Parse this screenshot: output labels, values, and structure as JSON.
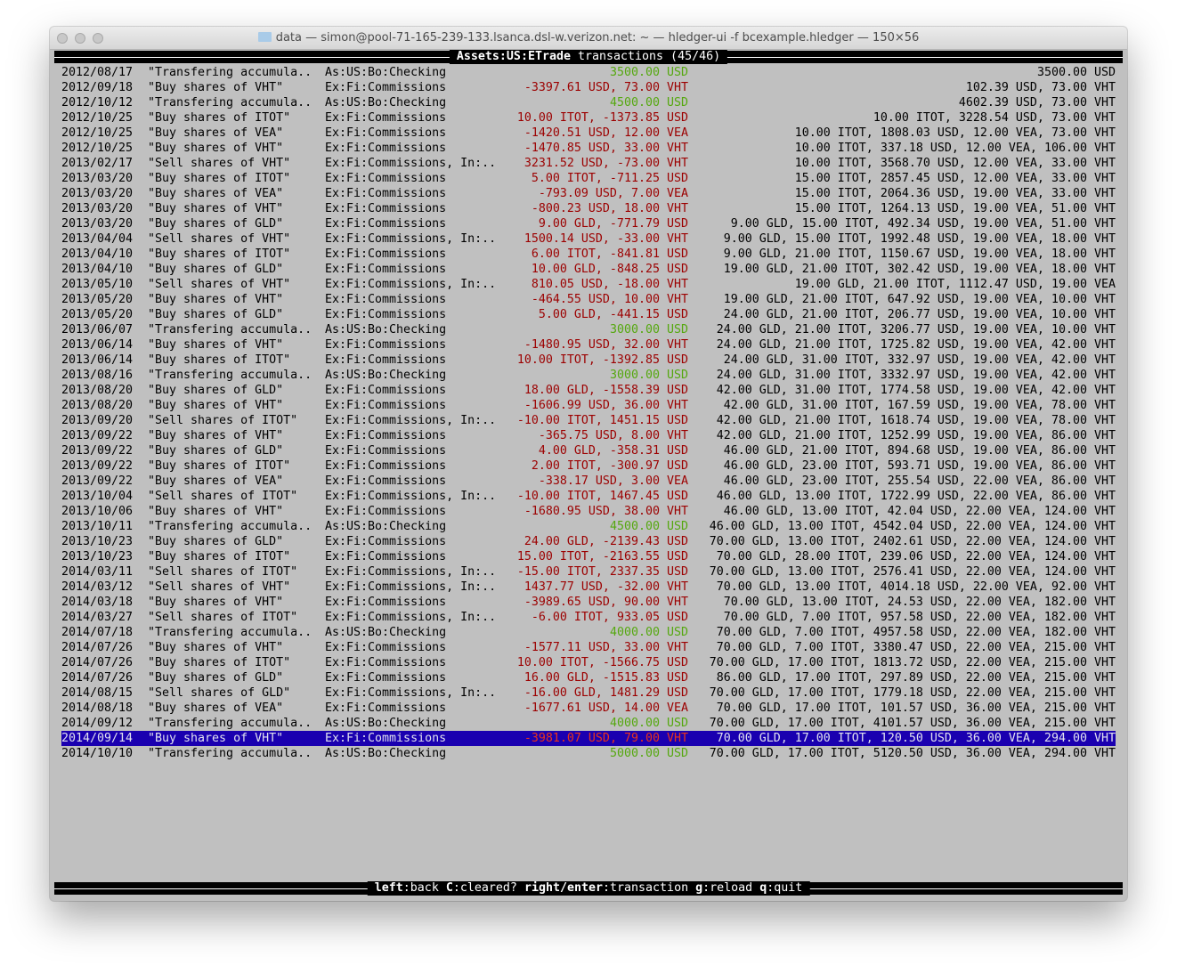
{
  "window": {
    "title": "data — simon@pool-71-165-239-133.lsanca.dsl-w.verizon.net: ~ — hledger-ui -f bcexample.hledger — 150×56"
  },
  "header": {
    "account": "Assets:US:ETrade",
    "suffix": " transactions (45/46)"
  },
  "footer": {
    "keys": [
      {
        "key": "left",
        "label": "back"
      },
      {
        "key": "C",
        "label": "cleared?"
      },
      {
        "key": "right/enter",
        "label": "transaction"
      },
      {
        "key": "g",
        "label": "reload"
      },
      {
        "key": "q",
        "label": "quit"
      }
    ]
  },
  "colors": {
    "positive": "#55a80f",
    "negative": "#9c0000",
    "selection": "#1a00b0",
    "background": "#c0c0c0"
  },
  "selected_index": 44,
  "rows": [
    {
      "date": "2012/08/17",
      "desc": "\"Transfering accumula..",
      "acct": "As:US:Bo:Checking",
      "change": "3500.00 USD",
      "balance": "3500.00 USD",
      "positive": true
    },
    {
      "date": "2012/09/18",
      "desc": "\"Buy shares of VHT\"",
      "acct": "Ex:Fi:Commissions",
      "change": "-3397.61 USD, 73.00 VHT",
      "balance": "102.39 USD, 73.00 VHT",
      "positive": false
    },
    {
      "date": "2012/10/12",
      "desc": "\"Transfering accumula..",
      "acct": "As:US:Bo:Checking",
      "change": "4500.00 USD",
      "balance": "4602.39 USD, 73.00 VHT",
      "positive": true
    },
    {
      "date": "2012/10/25",
      "desc": "\"Buy shares of ITOT\"",
      "acct": "Ex:Fi:Commissions",
      "change": "10.00 ITOT, -1373.85 USD",
      "balance": "10.00 ITOT, 3228.54 USD, 73.00 VHT",
      "positive": false
    },
    {
      "date": "2012/10/25",
      "desc": "\"Buy shares of VEA\"",
      "acct": "Ex:Fi:Commissions",
      "change": "-1420.51 USD, 12.00 VEA",
      "balance": "10.00 ITOT, 1808.03 USD, 12.00 VEA, 73.00 VHT",
      "positive": false
    },
    {
      "date": "2012/10/25",
      "desc": "\"Buy shares of VHT\"",
      "acct": "Ex:Fi:Commissions",
      "change": "-1470.85 USD, 33.00 VHT",
      "balance": "10.00 ITOT, 337.18 USD, 12.00 VEA, 106.00 VHT",
      "positive": false
    },
    {
      "date": "2013/02/17",
      "desc": "\"Sell shares of VHT\"",
      "acct": "Ex:Fi:Commissions, In:..",
      "change": "3231.52 USD, -73.00 VHT",
      "balance": "10.00 ITOT, 3568.70 USD, 12.00 VEA, 33.00 VHT",
      "positive": false
    },
    {
      "date": "2013/03/20",
      "desc": "\"Buy shares of ITOT\"",
      "acct": "Ex:Fi:Commissions",
      "change": "5.00 ITOT, -711.25 USD",
      "balance": "15.00 ITOT, 2857.45 USD, 12.00 VEA, 33.00 VHT",
      "positive": false
    },
    {
      "date": "2013/03/20",
      "desc": "\"Buy shares of VEA\"",
      "acct": "Ex:Fi:Commissions",
      "change": "-793.09 USD, 7.00 VEA",
      "balance": "15.00 ITOT, 2064.36 USD, 19.00 VEA, 33.00 VHT",
      "positive": false
    },
    {
      "date": "2013/03/20",
      "desc": "\"Buy shares of VHT\"",
      "acct": "Ex:Fi:Commissions",
      "change": "-800.23 USD, 18.00 VHT",
      "balance": "15.00 ITOT, 1264.13 USD, 19.00 VEA, 51.00 VHT",
      "positive": false
    },
    {
      "date": "2013/03/20",
      "desc": "\"Buy shares of GLD\"",
      "acct": "Ex:Fi:Commissions",
      "change": "9.00 GLD, -771.79 USD",
      "balance": "9.00 GLD, 15.00 ITOT, 492.34 USD, 19.00 VEA, 51.00 VHT",
      "positive": false
    },
    {
      "date": "2013/04/04",
      "desc": "\"Sell shares of VHT\"",
      "acct": "Ex:Fi:Commissions, In:..",
      "change": "1500.14 USD, -33.00 VHT",
      "balance": "9.00 GLD, 15.00 ITOT, 1992.48 USD, 19.00 VEA, 18.00 VHT",
      "positive": false
    },
    {
      "date": "2013/04/10",
      "desc": "\"Buy shares of ITOT\"",
      "acct": "Ex:Fi:Commissions",
      "change": "6.00 ITOT, -841.81 USD",
      "balance": "9.00 GLD, 21.00 ITOT, 1150.67 USD, 19.00 VEA, 18.00 VHT",
      "positive": false
    },
    {
      "date": "2013/04/10",
      "desc": "\"Buy shares of GLD\"",
      "acct": "Ex:Fi:Commissions",
      "change": "10.00 GLD, -848.25 USD",
      "balance": "19.00 GLD, 21.00 ITOT, 302.42 USD, 19.00 VEA, 18.00 VHT",
      "positive": false
    },
    {
      "date": "2013/05/10",
      "desc": "\"Sell shares of VHT\"",
      "acct": "Ex:Fi:Commissions, In:..",
      "change": "810.05 USD, -18.00 VHT",
      "balance": "19.00 GLD, 21.00 ITOT, 1112.47 USD, 19.00 VEA",
      "positive": false
    },
    {
      "date": "2013/05/20",
      "desc": "\"Buy shares of VHT\"",
      "acct": "Ex:Fi:Commissions",
      "change": "-464.55 USD, 10.00 VHT",
      "balance": "19.00 GLD, 21.00 ITOT, 647.92 USD, 19.00 VEA, 10.00 VHT",
      "positive": false
    },
    {
      "date": "2013/05/20",
      "desc": "\"Buy shares of GLD\"",
      "acct": "Ex:Fi:Commissions",
      "change": "5.00 GLD, -441.15 USD",
      "balance": "24.00 GLD, 21.00 ITOT, 206.77 USD, 19.00 VEA, 10.00 VHT",
      "positive": false
    },
    {
      "date": "2013/06/07",
      "desc": "\"Transfering accumula..",
      "acct": "As:US:Bo:Checking",
      "change": "3000.00 USD",
      "balance": "24.00 GLD, 21.00 ITOT, 3206.77 USD, 19.00 VEA, 10.00 VHT",
      "positive": true
    },
    {
      "date": "2013/06/14",
      "desc": "\"Buy shares of VHT\"",
      "acct": "Ex:Fi:Commissions",
      "change": "-1480.95 USD, 32.00 VHT",
      "balance": "24.00 GLD, 21.00 ITOT, 1725.82 USD, 19.00 VEA, 42.00 VHT",
      "positive": false
    },
    {
      "date": "2013/06/14",
      "desc": "\"Buy shares of ITOT\"",
      "acct": "Ex:Fi:Commissions",
      "change": "10.00 ITOT, -1392.85 USD",
      "balance": "24.00 GLD, 31.00 ITOT, 332.97 USD, 19.00 VEA, 42.00 VHT",
      "positive": false
    },
    {
      "date": "2013/08/16",
      "desc": "\"Transfering accumula..",
      "acct": "As:US:Bo:Checking",
      "change": "3000.00 USD",
      "balance": "24.00 GLD, 31.00 ITOT, 3332.97 USD, 19.00 VEA, 42.00 VHT",
      "positive": true
    },
    {
      "date": "2013/08/20",
      "desc": "\"Buy shares of GLD\"",
      "acct": "Ex:Fi:Commissions",
      "change": "18.00 GLD, -1558.39 USD",
      "balance": "42.00 GLD, 31.00 ITOT, 1774.58 USD, 19.00 VEA, 42.00 VHT",
      "positive": false
    },
    {
      "date": "2013/08/20",
      "desc": "\"Buy shares of VHT\"",
      "acct": "Ex:Fi:Commissions",
      "change": "-1606.99 USD, 36.00 VHT",
      "balance": "42.00 GLD, 31.00 ITOT, 167.59 USD, 19.00 VEA, 78.00 VHT",
      "positive": false
    },
    {
      "date": "2013/09/20",
      "desc": "\"Sell shares of ITOT\"",
      "acct": "Ex:Fi:Commissions, In:..",
      "change": "-10.00 ITOT, 1451.15 USD",
      "balance": "42.00 GLD, 21.00 ITOT, 1618.74 USD, 19.00 VEA, 78.00 VHT",
      "positive": false
    },
    {
      "date": "2013/09/22",
      "desc": "\"Buy shares of VHT\"",
      "acct": "Ex:Fi:Commissions",
      "change": "-365.75 USD, 8.00 VHT",
      "balance": "42.00 GLD, 21.00 ITOT, 1252.99 USD, 19.00 VEA, 86.00 VHT",
      "positive": false
    },
    {
      "date": "2013/09/22",
      "desc": "\"Buy shares of GLD\"",
      "acct": "Ex:Fi:Commissions",
      "change": "4.00 GLD, -358.31 USD",
      "balance": "46.00 GLD, 21.00 ITOT, 894.68 USD, 19.00 VEA, 86.00 VHT",
      "positive": false
    },
    {
      "date": "2013/09/22",
      "desc": "\"Buy shares of ITOT\"",
      "acct": "Ex:Fi:Commissions",
      "change": "2.00 ITOT, -300.97 USD",
      "balance": "46.00 GLD, 23.00 ITOT, 593.71 USD, 19.00 VEA, 86.00 VHT",
      "positive": false
    },
    {
      "date": "2013/09/22",
      "desc": "\"Buy shares of VEA\"",
      "acct": "Ex:Fi:Commissions",
      "change": "-338.17 USD, 3.00 VEA",
      "balance": "46.00 GLD, 23.00 ITOT, 255.54 USD, 22.00 VEA, 86.00 VHT",
      "positive": false
    },
    {
      "date": "2013/10/04",
      "desc": "\"Sell shares of ITOT\"",
      "acct": "Ex:Fi:Commissions, In:..",
      "change": "-10.00 ITOT, 1467.45 USD",
      "balance": "46.00 GLD, 13.00 ITOT, 1722.99 USD, 22.00 VEA, 86.00 VHT",
      "positive": false
    },
    {
      "date": "2013/10/06",
      "desc": "\"Buy shares of VHT\"",
      "acct": "Ex:Fi:Commissions",
      "change": "-1680.95 USD, 38.00 VHT",
      "balance": "46.00 GLD, 13.00 ITOT, 42.04 USD, 22.00 VEA, 124.00 VHT",
      "positive": false
    },
    {
      "date": "2013/10/11",
      "desc": "\"Transfering accumula..",
      "acct": "As:US:Bo:Checking",
      "change": "4500.00 USD",
      "balance": "46.00 GLD, 13.00 ITOT, 4542.04 USD, 22.00 VEA, 124.00 VHT",
      "positive": true
    },
    {
      "date": "2013/10/23",
      "desc": "\"Buy shares of GLD\"",
      "acct": "Ex:Fi:Commissions",
      "change": "24.00 GLD, -2139.43 USD",
      "balance": "70.00 GLD, 13.00 ITOT, 2402.61 USD, 22.00 VEA, 124.00 VHT",
      "positive": false
    },
    {
      "date": "2013/10/23",
      "desc": "\"Buy shares of ITOT\"",
      "acct": "Ex:Fi:Commissions",
      "change": "15.00 ITOT, -2163.55 USD",
      "balance": "70.00 GLD, 28.00 ITOT, 239.06 USD, 22.00 VEA, 124.00 VHT",
      "positive": false
    },
    {
      "date": "2014/03/11",
      "desc": "\"Sell shares of ITOT\"",
      "acct": "Ex:Fi:Commissions, In:..",
      "change": "-15.00 ITOT, 2337.35 USD",
      "balance": "70.00 GLD, 13.00 ITOT, 2576.41 USD, 22.00 VEA, 124.00 VHT",
      "positive": false
    },
    {
      "date": "2014/03/12",
      "desc": "\"Sell shares of VHT\"",
      "acct": "Ex:Fi:Commissions, In:..",
      "change": "1437.77 USD, -32.00 VHT",
      "balance": "70.00 GLD, 13.00 ITOT, 4014.18 USD, 22.00 VEA, 92.00 VHT",
      "positive": false
    },
    {
      "date": "2014/03/18",
      "desc": "\"Buy shares of VHT\"",
      "acct": "Ex:Fi:Commissions",
      "change": "-3989.65 USD, 90.00 VHT",
      "balance": "70.00 GLD, 13.00 ITOT, 24.53 USD, 22.00 VEA, 182.00 VHT",
      "positive": false
    },
    {
      "date": "2014/03/27",
      "desc": "\"Sell shares of ITOT\"",
      "acct": "Ex:Fi:Commissions, In:..",
      "change": "-6.00 ITOT, 933.05 USD",
      "balance": "70.00 GLD, 7.00 ITOT, 957.58 USD, 22.00 VEA, 182.00 VHT",
      "positive": false
    },
    {
      "date": "2014/07/18",
      "desc": "\"Transfering accumula..",
      "acct": "As:US:Bo:Checking",
      "change": "4000.00 USD",
      "balance": "70.00 GLD, 7.00 ITOT, 4957.58 USD, 22.00 VEA, 182.00 VHT",
      "positive": true
    },
    {
      "date": "2014/07/26",
      "desc": "\"Buy shares of VHT\"",
      "acct": "Ex:Fi:Commissions",
      "change": "-1577.11 USD, 33.00 VHT",
      "balance": "70.00 GLD, 7.00 ITOT, 3380.47 USD, 22.00 VEA, 215.00 VHT",
      "positive": false
    },
    {
      "date": "2014/07/26",
      "desc": "\"Buy shares of ITOT\"",
      "acct": "Ex:Fi:Commissions",
      "change": "10.00 ITOT, -1566.75 USD",
      "balance": "70.00 GLD, 17.00 ITOT, 1813.72 USD, 22.00 VEA, 215.00 VHT",
      "positive": false
    },
    {
      "date": "2014/07/26",
      "desc": "\"Buy shares of GLD\"",
      "acct": "Ex:Fi:Commissions",
      "change": "16.00 GLD, -1515.83 USD",
      "balance": "86.00 GLD, 17.00 ITOT, 297.89 USD, 22.00 VEA, 215.00 VHT",
      "positive": false
    },
    {
      "date": "2014/08/15",
      "desc": "\"Sell shares of GLD\"",
      "acct": "Ex:Fi:Commissions, In:..",
      "change": "-16.00 GLD, 1481.29 USD",
      "balance": "70.00 GLD, 17.00 ITOT, 1779.18 USD, 22.00 VEA, 215.00 VHT",
      "positive": false
    },
    {
      "date": "2014/08/18",
      "desc": "\"Buy shares of VEA\"",
      "acct": "Ex:Fi:Commissions",
      "change": "-1677.61 USD, 14.00 VEA",
      "balance": "70.00 GLD, 17.00 ITOT, 101.57 USD, 36.00 VEA, 215.00 VHT",
      "positive": false
    },
    {
      "date": "2014/09/12",
      "desc": "\"Transfering accumula..",
      "acct": "As:US:Bo:Checking",
      "change": "4000.00 USD",
      "balance": "70.00 GLD, 17.00 ITOT, 4101.57 USD, 36.00 VEA, 215.00 VHT",
      "positive": true
    },
    {
      "date": "2014/09/14",
      "desc": "\"Buy shares of VHT\"",
      "acct": "Ex:Fi:Commissions",
      "change": "-3981.07 USD, 79.00 VHT",
      "balance": "70.00 GLD, 17.00 ITOT, 120.50 USD, 36.00 VEA, 294.00 VHT",
      "positive": false
    },
    {
      "date": "2014/10/10",
      "desc": "\"Transfering accumula..",
      "acct": "As:US:Bo:Checking",
      "change": "5000.00 USD",
      "balance": "70.00 GLD, 17.00 ITOT, 5120.50 USD, 36.00 VEA, 294.00 VHT",
      "positive": true
    }
  ]
}
